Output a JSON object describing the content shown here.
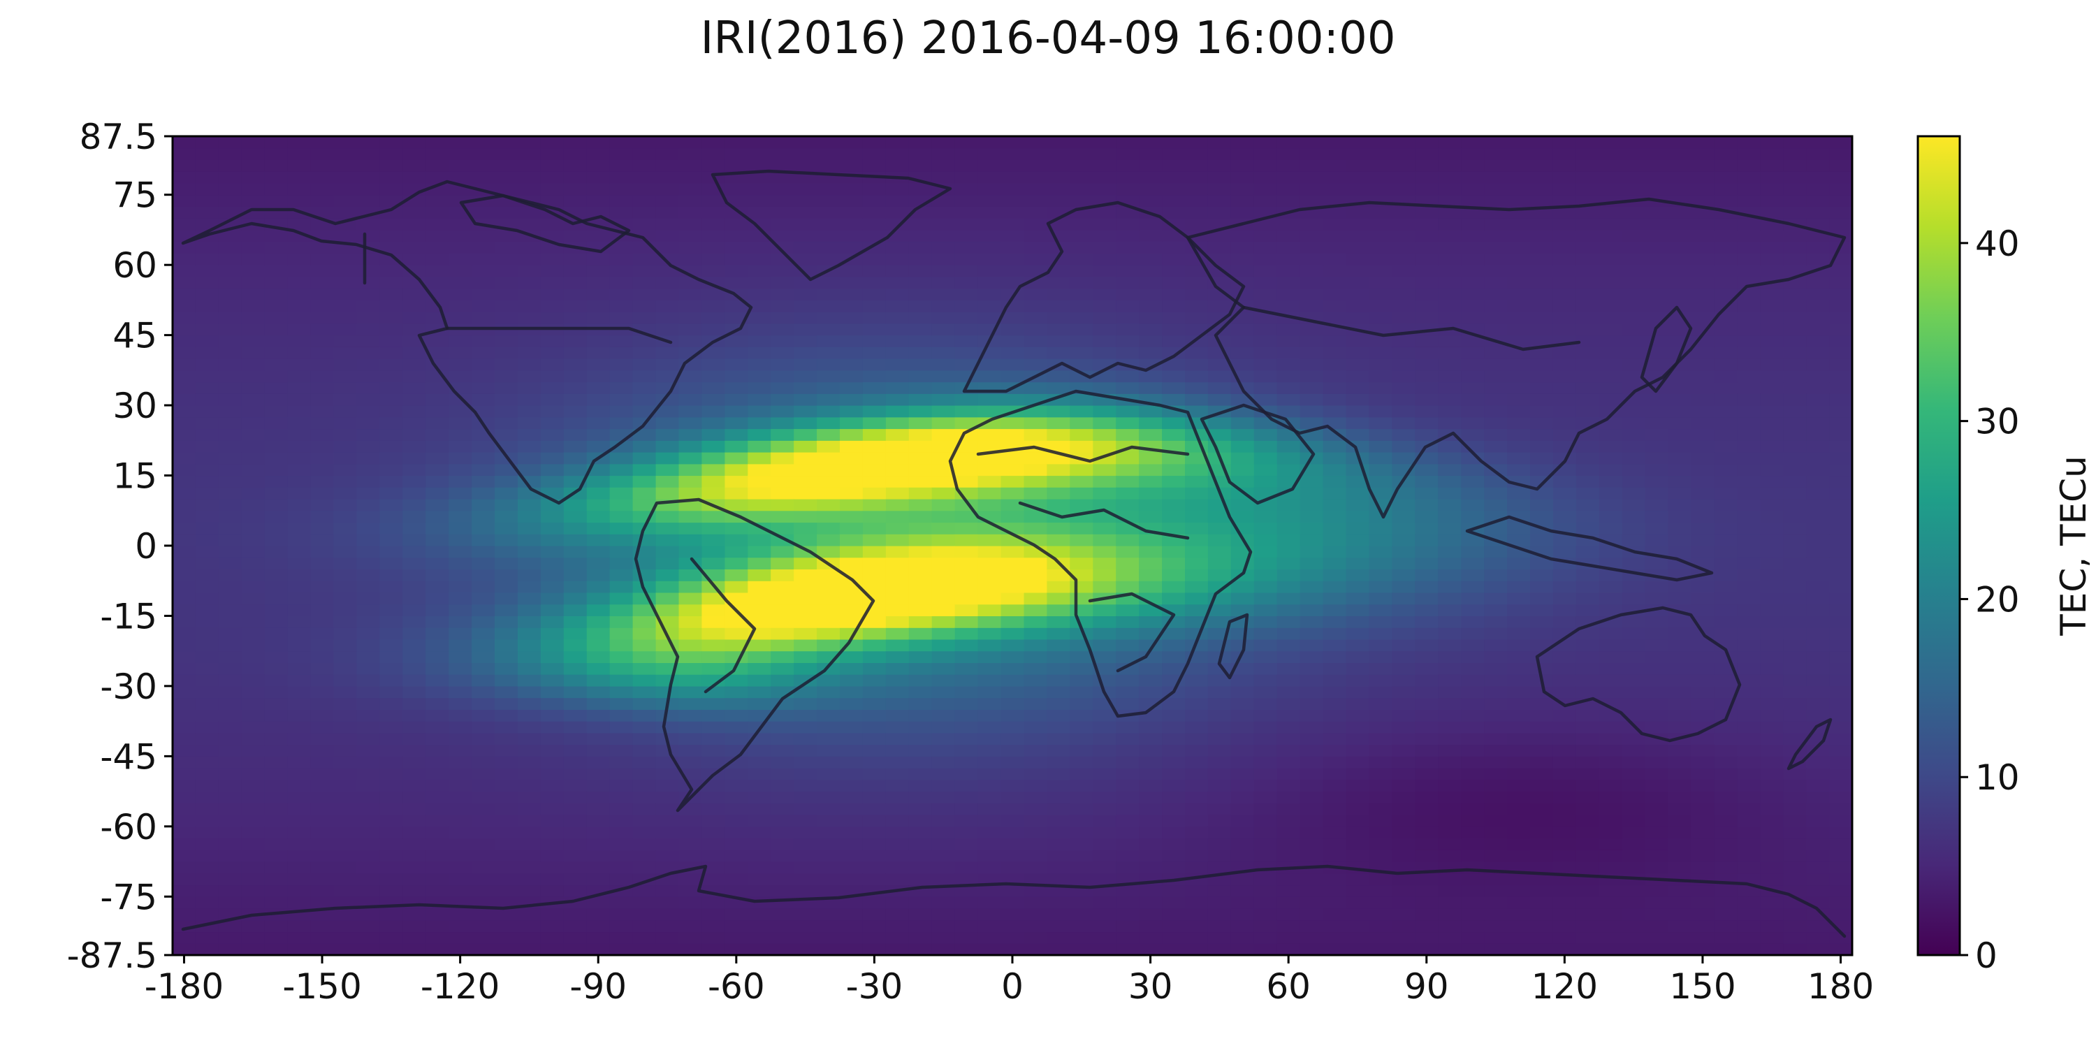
{
  "chart_data": {
    "type": "heatmap",
    "title": "IRI(2016) 2016-04-09 16:00:00",
    "xlabel": "",
    "ylabel": "",
    "x_ticks": [
      "-180",
      "-150",
      "-120",
      "-90",
      "-60",
      "-30",
      "0",
      "30",
      "60",
      "90",
      "120",
      "150",
      "180"
    ],
    "y_ticks": [
      "87.5",
      "75",
      "60",
      "45",
      "30",
      "15",
      "0",
      "-15",
      "-30",
      "-45",
      "-60",
      "-75",
      "-87.5"
    ],
    "xlim": [
      -182.5,
      182.5
    ],
    "ylim": [
      -87.5,
      87.5
    ],
    "colorbar": {
      "label": "TEC, TECu",
      "ticks": [
        "0",
        "10",
        "20",
        "30",
        "40"
      ],
      "range": [
        0,
        46
      ],
      "colormap": "viridis",
      "colormap_stops": [
        "#440154",
        "#482878",
        "#3e4a89",
        "#31688e",
        "#26828e",
        "#1f9e89",
        "#35b779",
        "#6ece58",
        "#b5de2b",
        "#fde725"
      ]
    },
    "grid": false,
    "cell_size_deg": {
      "lon": 5,
      "lat": 2.5
    },
    "field_features": {
      "background_tec": 3,
      "northern_crest": {
        "peak_tec": 46,
        "center_lon": -20,
        "center_lat": 18
      },
      "southern_crest": {
        "peak_tec": 46,
        "center_lon": -35,
        "center_lat": -8
      },
      "trough_region": {
        "center_lon": 110,
        "center_lat": -55,
        "tec": 1
      }
    },
    "overlay": "coastlines and national borders"
  }
}
